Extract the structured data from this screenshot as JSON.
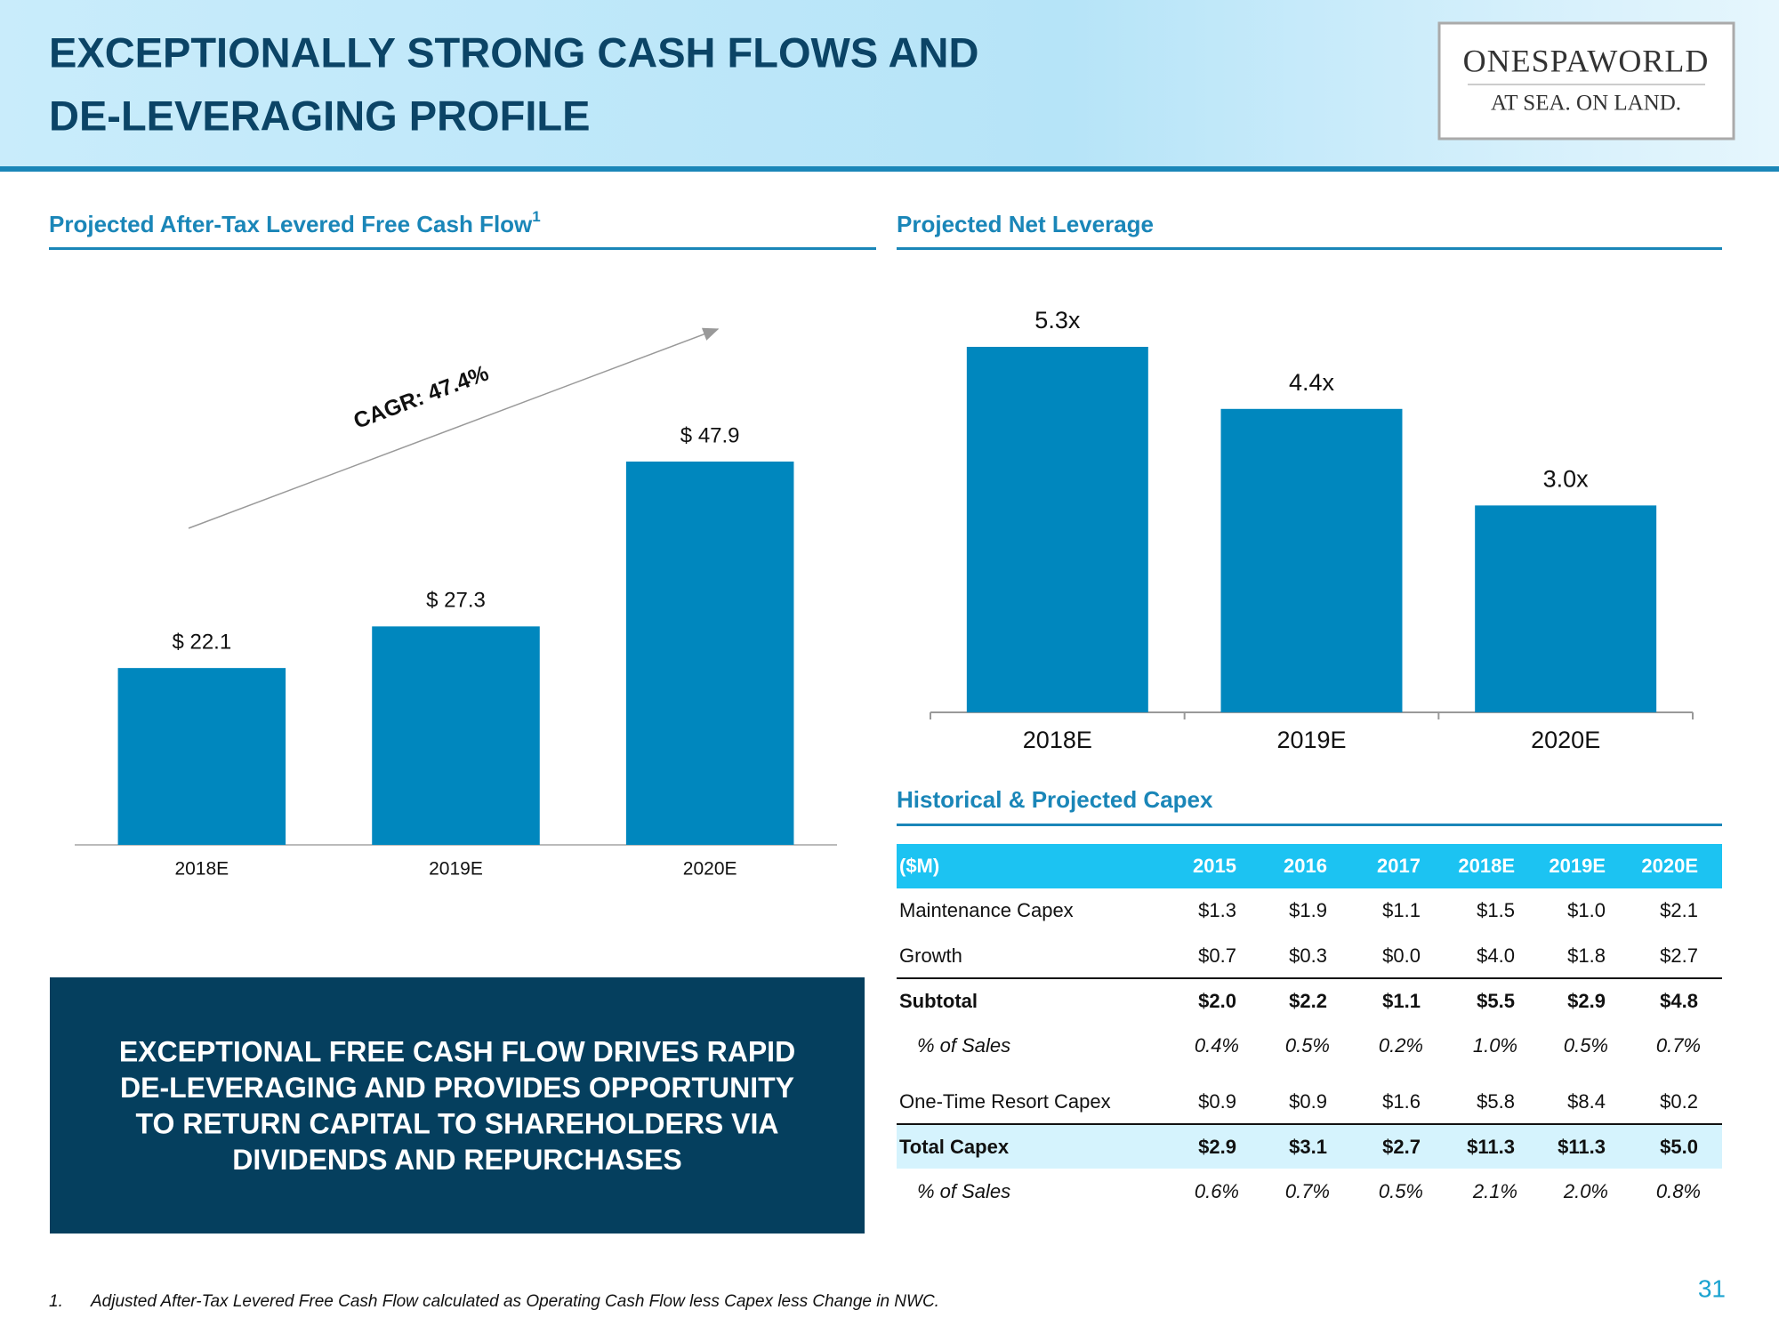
{
  "header": {
    "title_lines": [
      "EXCEPTIONALLY STRONG CASH FLOWS AND",
      "DE-LEVERAGING PROFILE"
    ],
    "logo_name": "ONESPAWORLD",
    "logo_tagline": "AT SEA. ON LAND."
  },
  "chart_data": [
    {
      "type": "bar",
      "title": "Projected After-Tax Levered Free Cash Flow",
      "title_superscript": "1",
      "categories": [
        "2018E",
        "2019E",
        "2020E"
      ],
      "values": [
        22.1,
        27.3,
        47.9
      ],
      "value_labels": [
        "$ 22.1",
        "$ 27.3",
        "$ 47.9"
      ],
      "color": "#0087be",
      "annotation": "CAGR: 47.4%"
    },
    {
      "type": "bar",
      "title": "Projected Net Leverage",
      "categories": [
        "2018E",
        "2019E",
        "2020E"
      ],
      "values": [
        5.3,
        4.4,
        3.0
      ],
      "value_labels": [
        "5.3x",
        "4.4x",
        "3.0x"
      ],
      "color": "#0087be"
    }
  ],
  "table": {
    "title": "Historical & Projected Capex",
    "header": [
      "($M)",
      "2015",
      "2016",
      "2017",
      "2018E",
      "2019E",
      "2020E"
    ],
    "rows": [
      [
        "Maintenance Capex",
        "$1.3",
        "$1.9",
        "$1.1",
        "$1.5",
        "$1.0",
        "$2.1"
      ],
      [
        "Growth",
        "$0.7",
        "$0.3",
        "$0.0",
        "$4.0",
        "$1.8",
        "$2.7"
      ],
      [
        "Subtotal",
        "$2.0",
        "$2.2",
        "$1.1",
        "$5.5",
        "$2.9",
        "$4.8"
      ],
      [
        "% of Sales",
        "0.4%",
        "0.5%",
        "0.2%",
        "1.0%",
        "0.5%",
        "0.7%"
      ],
      [
        "One-Time Resort Capex",
        "$0.9",
        "$0.9",
        "$1.6",
        "$5.8",
        "$8.4",
        "$0.2"
      ],
      [
        "Total Capex",
        "$2.9",
        "$3.1",
        "$2.7",
        "$11.3",
        "$11.3",
        "$5.0"
      ],
      [
        "% of Sales",
        "0.6%",
        "0.7%",
        "0.5%",
        "2.1%",
        "2.0%",
        "0.8%"
      ]
    ]
  },
  "callout_lines": [
    "EXCEPTIONAL FREE CASH FLOW DRIVES RAPID",
    "DE-LEVERAGING AND PROVIDES OPPORTUNITY",
    "TO RETURN CAPITAL TO SHAREHOLDERS VIA",
    "DIVIDENDS AND REPURCHASES"
  ],
  "footnote": {
    "number": "1.",
    "text": "Adjusted After-Tax Levered Free Cash Flow calculated as Operating Cash Flow less Capex less Change in NWC."
  },
  "page_number": "31"
}
